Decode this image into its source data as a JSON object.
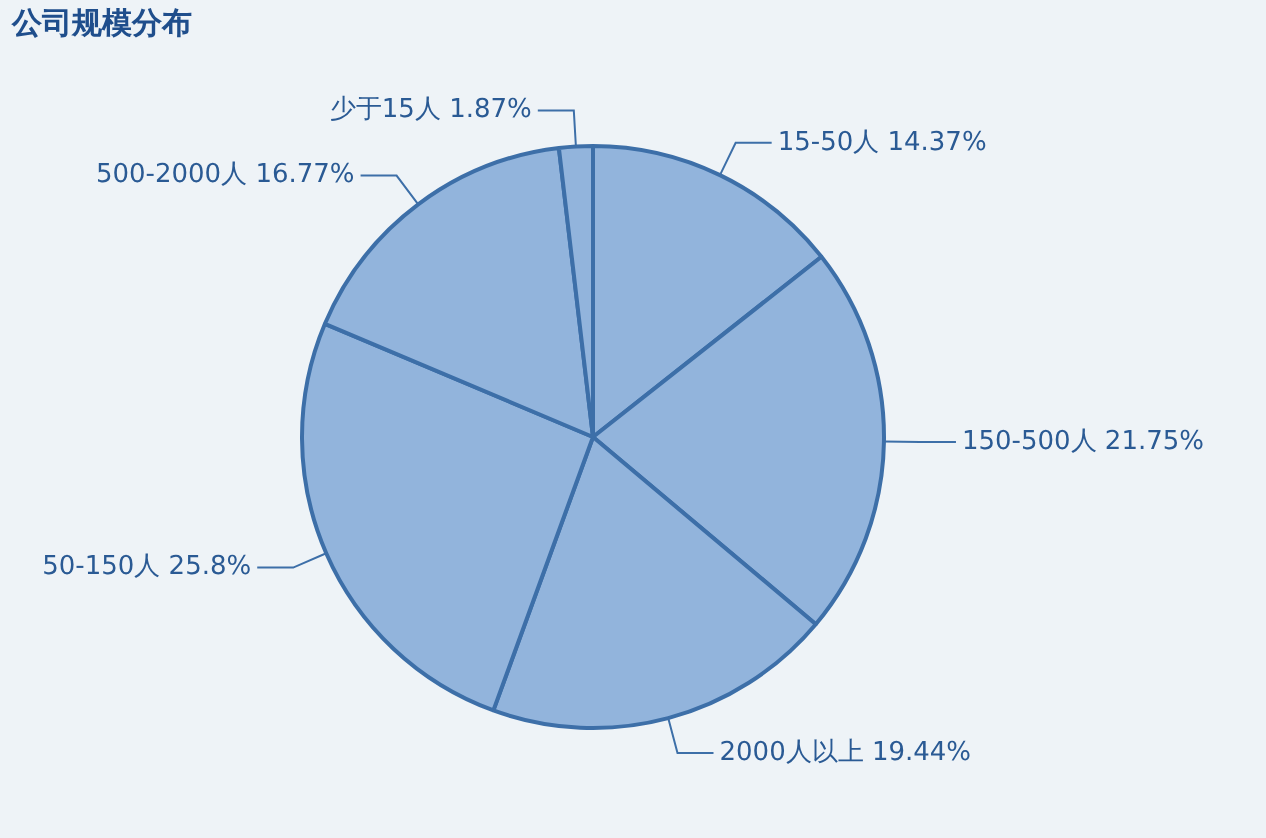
{
  "chart_data": {
    "type": "pie",
    "title": "公司规模分布",
    "categories": [
      "15-50人",
      "150-500人",
      "2000人以上",
      "50-150人",
      "500-2000人",
      "少于15人"
    ],
    "values": [
      14.37,
      21.75,
      19.44,
      25.8,
      16.77,
      1.87
    ],
    "value_labels": [
      "14.37%",
      "21.75%",
      "19.44%",
      "25.8%",
      "16.77%",
      "1.87%"
    ],
    "colors": [
      "#92b4dc",
      "#92b4dc",
      "#92b4dc",
      "#92b4dc",
      "#92b4dc",
      "#92b4dc"
    ],
    "legend": false
  }
}
